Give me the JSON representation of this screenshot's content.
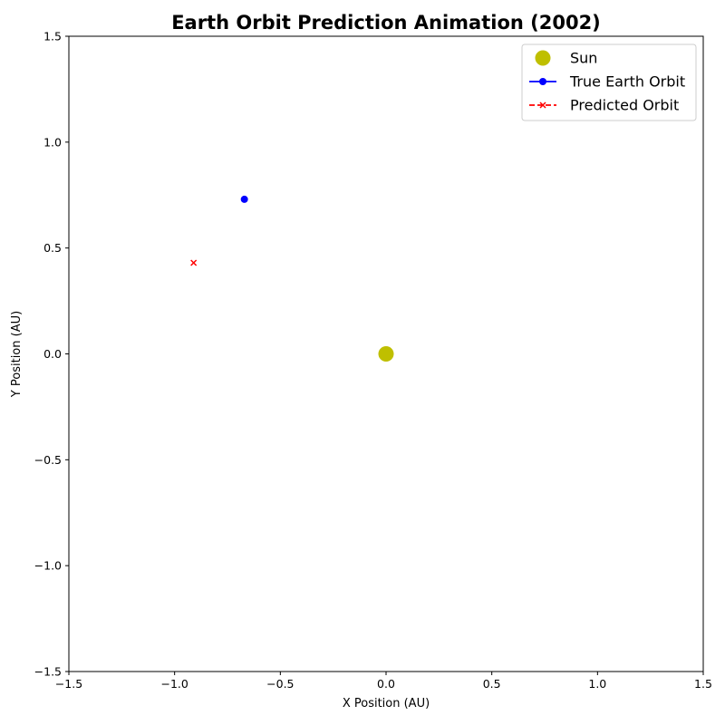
{
  "chart_data": {
    "type": "scatter",
    "title": "Earth Orbit Prediction Animation (2002)",
    "xlabel": "X Position (AU)",
    "ylabel": "Y Position (AU)",
    "xlim": [
      -1.5,
      1.5
    ],
    "ylim": [
      -1.5,
      1.5
    ],
    "x_ticks": [
      -1.5,
      -1.0,
      -0.5,
      0.0,
      0.5,
      1.0,
      1.5
    ],
    "y_ticks": [
      -1.5,
      -1.0,
      -0.5,
      0.0,
      0.5,
      1.0,
      1.5
    ],
    "x_tick_labels": [
      "−1.5",
      "−1.0",
      "−0.5",
      "0.0",
      "0.5",
      "1.0",
      "1.5"
    ],
    "y_tick_labels": [
      "−1.5",
      "−1.0",
      "−0.5",
      "0.0",
      "0.5",
      "1.0",
      "1.5"
    ],
    "grid": false,
    "legend_position": "top-right",
    "series": [
      {
        "name": "Sun",
        "marker": "circle-large",
        "color": "#bfbf00",
        "linestyle": "none",
        "x": [
          0.0
        ],
        "y": [
          0.0
        ]
      },
      {
        "name": "True Earth Orbit",
        "marker": "circle",
        "color": "#0000ff",
        "linestyle": "solid",
        "x": [
          -0.67
        ],
        "y": [
          0.73
        ]
      },
      {
        "name": "Predicted Orbit",
        "marker": "x",
        "color": "#ff0000",
        "linestyle": "dashed",
        "x": [
          -0.91
        ],
        "y": [
          0.43
        ]
      }
    ]
  }
}
